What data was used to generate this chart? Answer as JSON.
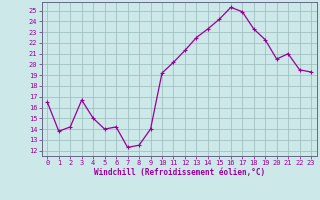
{
  "x": [
    0,
    1,
    2,
    3,
    4,
    5,
    6,
    7,
    8,
    9,
    10,
    11,
    12,
    13,
    14,
    15,
    16,
    17,
    18,
    19,
    20,
    21,
    22,
    23
  ],
  "y": [
    16.5,
    13.8,
    14.2,
    16.7,
    15.0,
    14.0,
    14.2,
    12.3,
    12.5,
    14.0,
    19.2,
    20.2,
    21.3,
    22.5,
    23.3,
    24.2,
    25.3,
    24.9,
    23.3,
    22.3,
    20.5,
    21.0,
    19.5,
    19.3
  ],
  "line_color": "#990099",
  "marker": "+",
  "marker_size": 3,
  "marker_lw": 0.8,
  "bg_color": "#cce8e8",
  "grid_color": "#99bbbb",
  "xlabel": "Windchill (Refroidissement éolien,°C)",
  "ylabel_ticks": [
    12,
    13,
    14,
    15,
    16,
    17,
    18,
    19,
    20,
    21,
    22,
    23,
    24,
    25
  ],
  "ylim": [
    11.5,
    25.8
  ],
  "xlim": [
    -0.5,
    23.5
  ],
  "tick_fontsize": 5.0,
  "xlabel_fontsize": 5.5,
  "line_width": 0.9
}
